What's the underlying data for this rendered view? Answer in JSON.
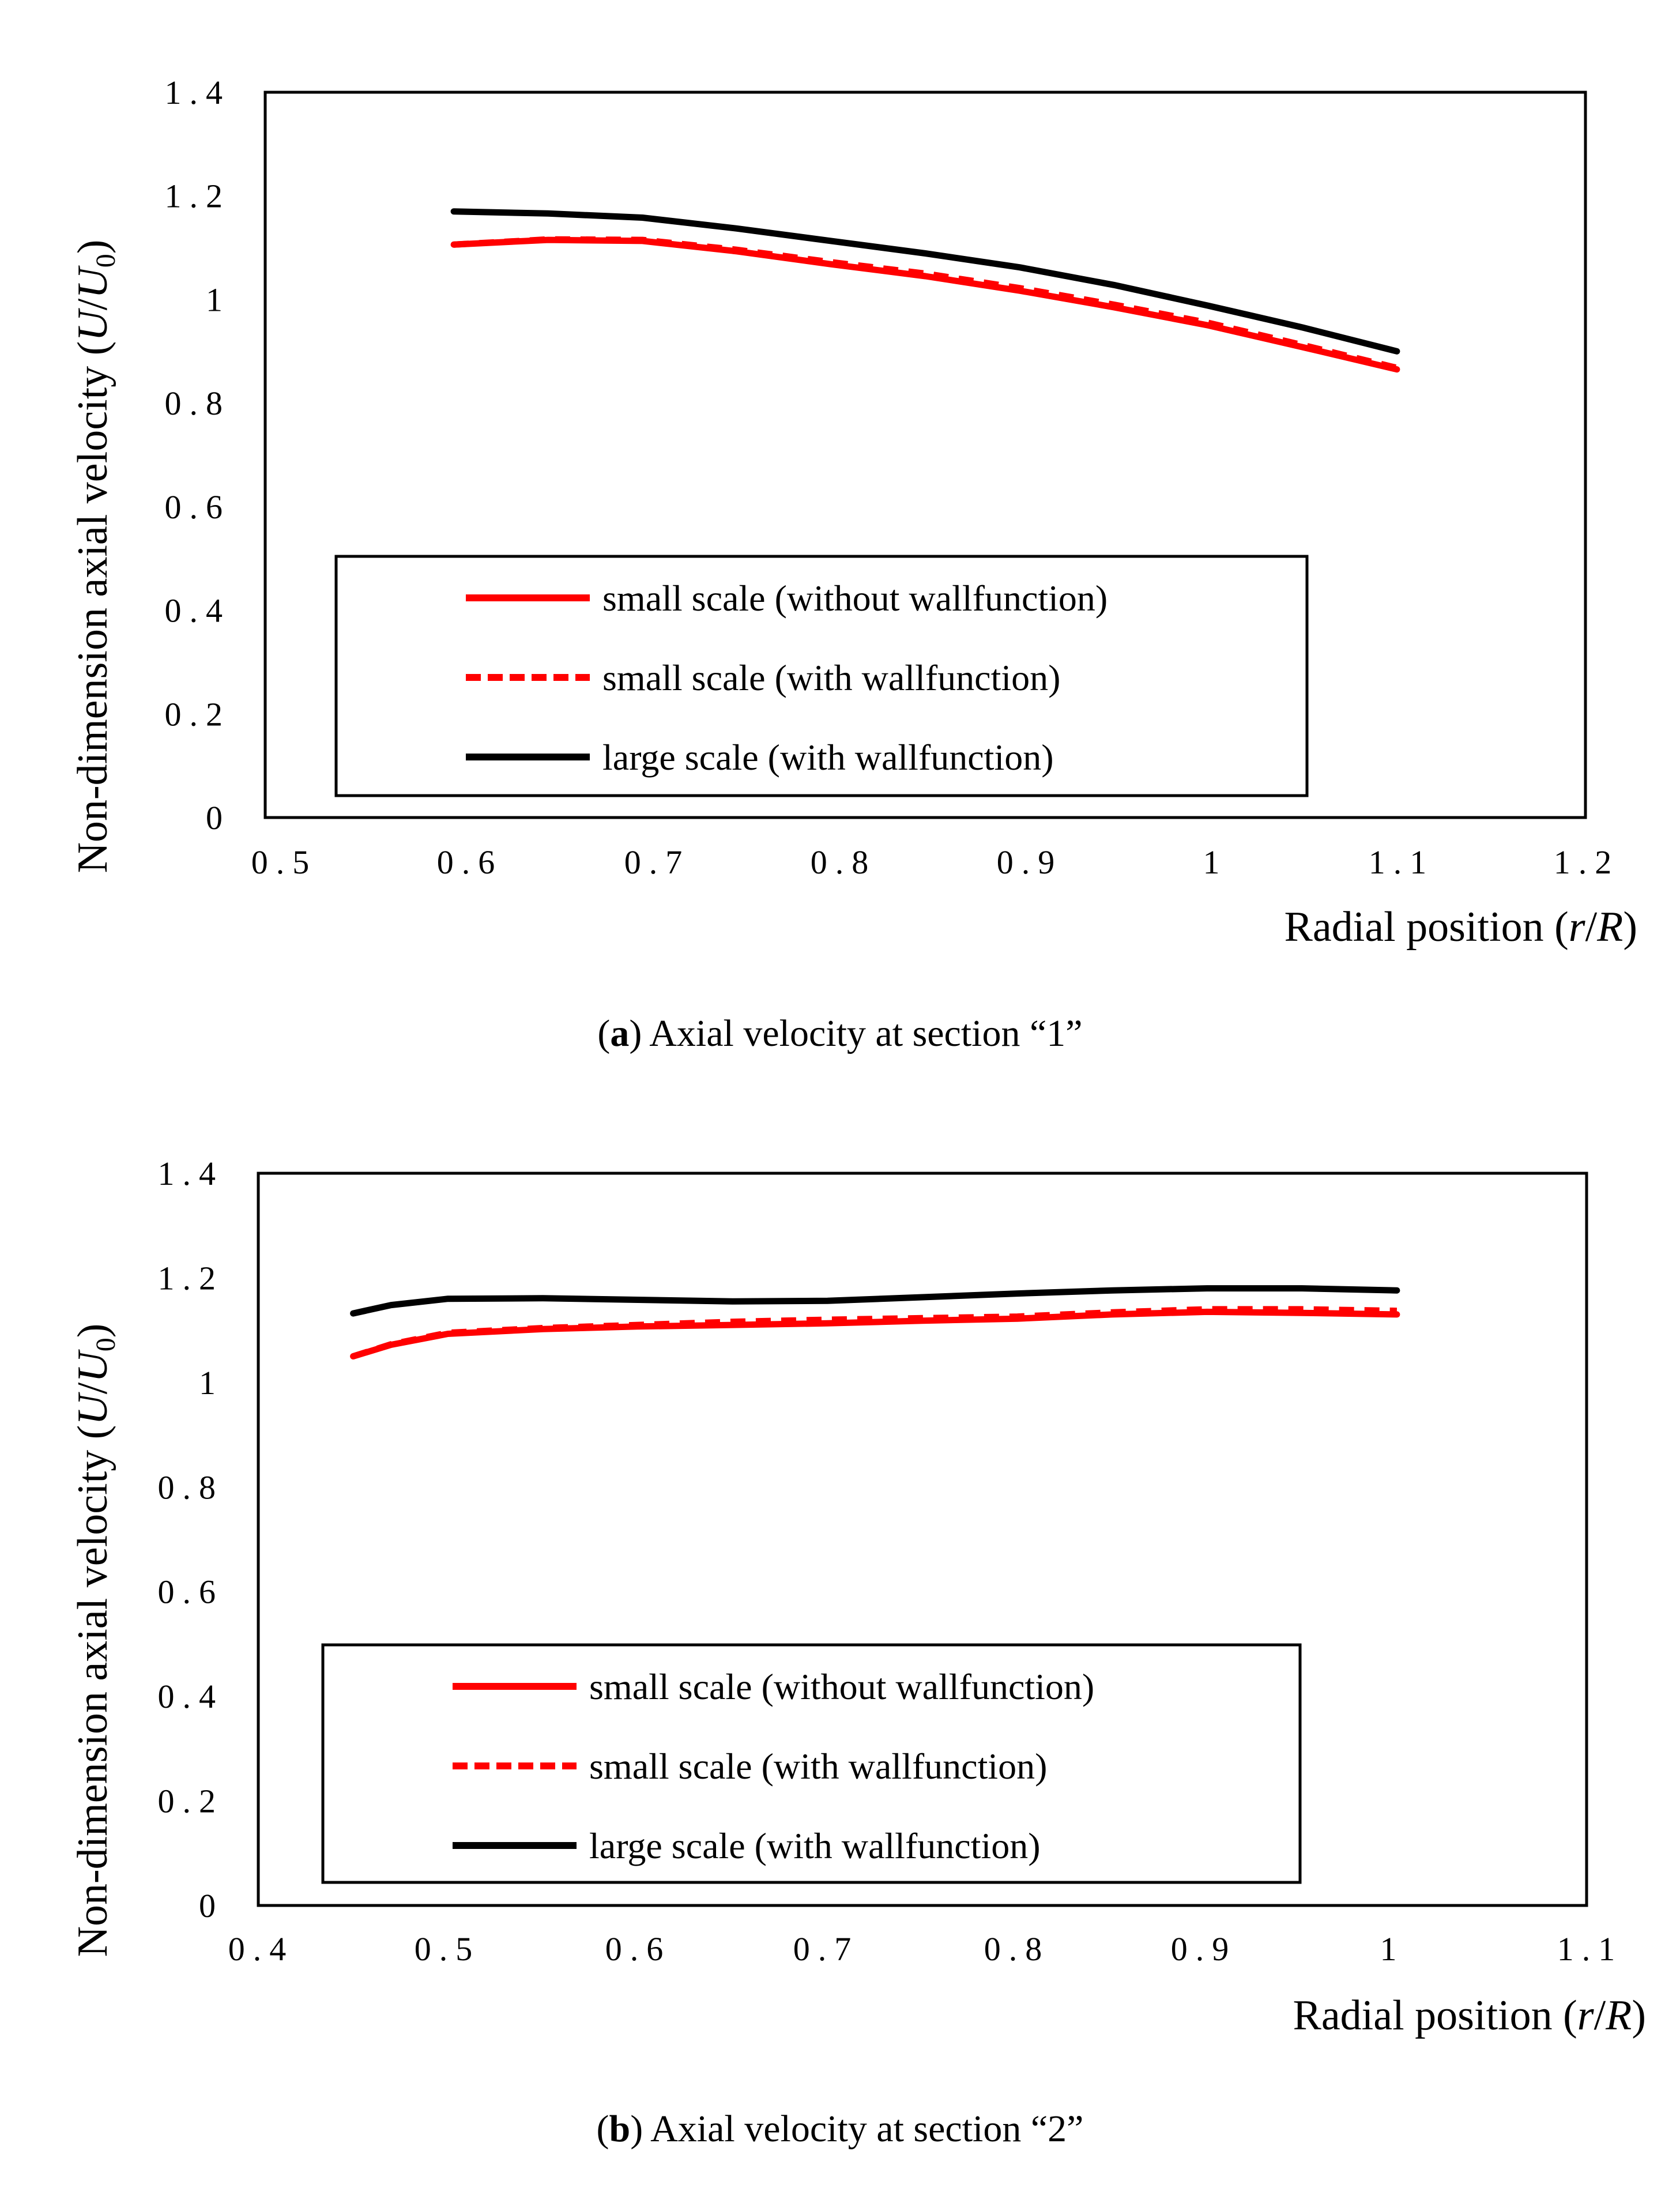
{
  "chart_data": [
    {
      "type": "line",
      "title": "",
      "xlabel": "Radial position (r/R)",
      "xlabel_parts": [
        "Radial position (",
        "r",
        "/",
        "R",
        ")"
      ],
      "ylabel": "Non-dimension axial velocity (U/U0)",
      "ylabel_parts": [
        "Non-dimension axial velocity (",
        "U",
        "/",
        "U",
        "0",
        ")"
      ],
      "xlim": [
        0.5,
        1.2
      ],
      "ylim": [
        0,
        1.4
      ],
      "xticks": [
        "0.5",
        "0.6",
        "0.7",
        "0.8",
        "0.9",
        "1",
        "1.1",
        "1.2"
      ],
      "xtick_values": [
        0.5,
        0.6,
        0.7,
        0.8,
        0.9,
        1.0,
        1.1,
        1.2
      ],
      "yticks": [
        "0",
        "0.2",
        "0.4",
        "0.6",
        "0.8",
        "1",
        "1.2",
        "1.4"
      ],
      "ytick_values": [
        0,
        0.2,
        0.4,
        0.6,
        0.8,
        1.0,
        1.2,
        1.4
      ],
      "grid": false,
      "legend_position": "lower-center",
      "series": [
        {
          "name": "small scale (without wallfunction)",
          "color": "#ff0000",
          "style": "solid",
          "x": [
            0.6,
            0.65,
            0.7,
            0.75,
            0.8,
            0.85,
            0.9,
            0.95,
            1.0,
            1.05,
            1.1
          ],
          "y": [
            1.106,
            1.115,
            1.113,
            1.093,
            1.068,
            1.045,
            1.017,
            0.985,
            0.95,
            0.908,
            0.865
          ]
        },
        {
          "name": "small scale (with wallfunction)",
          "color": "#ff0000",
          "style": "dashed",
          "x": [
            0.6,
            0.65,
            0.7,
            0.75,
            0.8,
            0.85,
            0.9,
            0.95,
            1.0,
            1.05,
            1.1
          ],
          "y": [
            1.106,
            1.116,
            1.115,
            1.096,
            1.072,
            1.05,
            1.022,
            0.99,
            0.955,
            0.912,
            0.868
          ]
        },
        {
          "name": "large scale (with wallfunction)",
          "color": "#000000",
          "style": "solid",
          "x": [
            0.6,
            0.65,
            0.7,
            0.75,
            0.8,
            0.85,
            0.9,
            0.95,
            1.0,
            1.05,
            1.1
          ],
          "y": [
            1.17,
            1.166,
            1.158,
            1.137,
            1.113,
            1.089,
            1.062,
            1.028,
            0.988,
            0.946,
            0.9
          ]
        }
      ],
      "caption": {
        "label": "a",
        "text": "Axial velocity at section “1”"
      }
    },
    {
      "type": "line",
      "title": "",
      "xlabel": "Radial position (r/R)",
      "xlabel_parts": [
        "Radial position (",
        "r",
        "/",
        "R",
        ")"
      ],
      "ylabel": "Non-dimension axial velocity (U/U0)",
      "ylabel_parts": [
        "Non-dimension axial velocity (",
        "U",
        "/",
        "U",
        "0",
        ")"
      ],
      "xlim": [
        0.4,
        1.1
      ],
      "ylim": [
        0,
        1.4
      ],
      "xticks": [
        "0.4",
        "0.5",
        "0.6",
        "0.7",
        "0.8",
        "0.9",
        "1",
        "1.1"
      ],
      "xtick_values": [
        0.4,
        0.5,
        0.6,
        0.7,
        0.8,
        0.9,
        1.0,
        1.1
      ],
      "yticks": [
        "0",
        "0.2",
        "0.4",
        "0.6",
        "0.8",
        "1",
        "1.2",
        "1.4"
      ],
      "ytick_values": [
        0,
        0.2,
        0.4,
        0.6,
        0.8,
        1.0,
        1.2,
        1.4
      ],
      "grid": false,
      "legend_position": "lower-center",
      "series": [
        {
          "name": "small scale (without wallfunction)",
          "color": "#ff0000",
          "style": "solid",
          "x": [
            0.45,
            0.47,
            0.5,
            0.55,
            0.6,
            0.65,
            0.7,
            0.75,
            0.8,
            0.85,
            0.9,
            0.95,
            1.0
          ],
          "y": [
            1.05,
            1.072,
            1.093,
            1.102,
            1.107,
            1.11,
            1.113,
            1.118,
            1.122,
            1.13,
            1.135,
            1.133,
            1.13
          ]
        },
        {
          "name": "small scale (with wallfunction)",
          "color": "#ff0000",
          "style": "dashed",
          "x": [
            0.45,
            0.47,
            0.5,
            0.55,
            0.6,
            0.65,
            0.7,
            0.75,
            0.8,
            0.85,
            0.9,
            0.95,
            1.0
          ],
          "y": [
            1.05,
            1.073,
            1.095,
            1.104,
            1.11,
            1.116,
            1.12,
            1.123,
            1.126,
            1.134,
            1.14,
            1.14,
            1.137
          ]
        },
        {
          "name": "large scale (with wallfunction)",
          "color": "#000000",
          "style": "solid",
          "x": [
            0.45,
            0.47,
            0.5,
            0.55,
            0.6,
            0.65,
            0.7,
            0.75,
            0.8,
            0.85,
            0.9,
            0.95,
            1.0
          ],
          "y": [
            1.132,
            1.148,
            1.16,
            1.161,
            1.158,
            1.155,
            1.156,
            1.163,
            1.17,
            1.176,
            1.18,
            1.18,
            1.176
          ]
        }
      ],
      "caption": {
        "label": "b",
        "text": "Axial velocity at section “2”"
      }
    }
  ]
}
